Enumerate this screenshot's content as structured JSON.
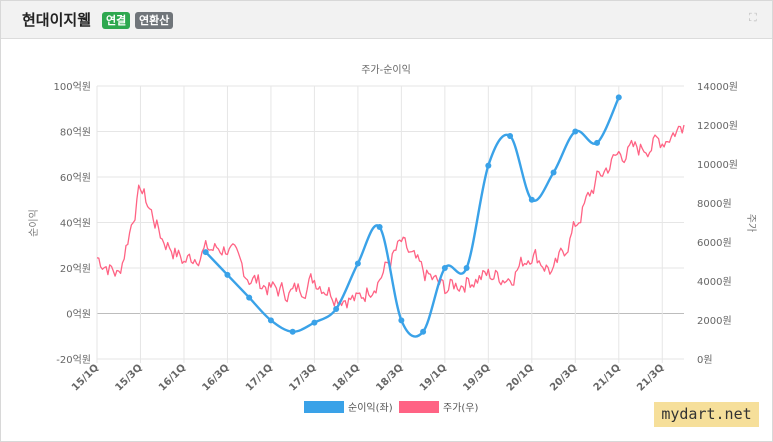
{
  "header": {
    "company": "현대이지웰",
    "badge_linked": "연결",
    "badge_basis": "연환산",
    "expand_icon": "expand-icon"
  },
  "colors": {
    "income": "#3aa2e8",
    "price": "#ff6384",
    "badge_linked": "#2ea84f",
    "badge_basis": "#70757a"
  },
  "chart_data": {
    "type": "line",
    "title": "주가-순이익",
    "y_left_label": "순이익",
    "y_right_label": "주가",
    "y_left_range": [
      -20,
      100
    ],
    "y_left_ticks": [
      "-20억원",
      "0억원",
      "20억원",
      "40억원",
      "60억원",
      "80억원",
      "100억원"
    ],
    "y_right_range": [
      0,
      14000
    ],
    "y_right_ticks": [
      "0원",
      "2000원",
      "4000원",
      "6000원",
      "8000원",
      "10000원",
      "12000원",
      "14000원"
    ],
    "x_tick_labels": [
      "15/1Q",
      "15/3Q",
      "16/1Q",
      "16/3Q",
      "17/1Q",
      "17/3Q",
      "18/1Q",
      "18/3Q",
      "19/1Q",
      "19/3Q",
      "20/1Q",
      "20/3Q",
      "21/1Q",
      "21/3Q"
    ],
    "grid": true,
    "legend_position": "bottom",
    "series": [
      {
        "name": "순이익(좌)",
        "axis": "left",
        "x": [
          "16/2Q",
          "16/3Q",
          "16/4Q",
          "17/1Q",
          "17/2Q",
          "17/3Q",
          "17/4Q",
          "18/1Q",
          "18/2Q",
          "18/3Q",
          "18/4Q",
          "19/1Q",
          "19/2Q",
          "19/3Q",
          "19/4Q",
          "20/1Q",
          "20/2Q",
          "20/3Q",
          "20/4Q",
          "21/1Q"
        ],
        "values": [
          27,
          17,
          7,
          -3,
          -8,
          -4,
          2,
          22,
          38,
          -3,
          -8,
          20,
          20,
          65,
          78,
          50,
          62,
          80,
          75,
          95
        ]
      },
      {
        "name": "주가(우)",
        "axis": "right",
        "x": [
          "15/1Q",
          "15/2Q",
          "15/3Q",
          "15/4Q",
          "16/1Q",
          "16/2Q",
          "16/3Q",
          "16/4Q",
          "17/1Q",
          "17/2Q",
          "17/3Q",
          "17/4Q",
          "18/1Q",
          "18/2Q",
          "18/3Q",
          "18/4Q",
          "19/1Q",
          "19/2Q",
          "19/3Q",
          "19/4Q",
          "20/1Q",
          "20/2Q",
          "20/3Q",
          "20/4Q",
          "21/1Q",
          "21/2Q",
          "21/3Q",
          "21/4Q"
        ],
        "values": [
          5200,
          4300,
          8800,
          6200,
          5000,
          5600,
          5700,
          4200,
          3600,
          3400,
          4100,
          3300,
          3000,
          4200,
          5900,
          4400,
          3600,
          4000,
          4300,
          4200,
          5500,
          4400,
          6800,
          9200,
          10500,
          10800,
          11200,
          12000
        ]
      }
    ]
  },
  "watermark": "mydart.net"
}
